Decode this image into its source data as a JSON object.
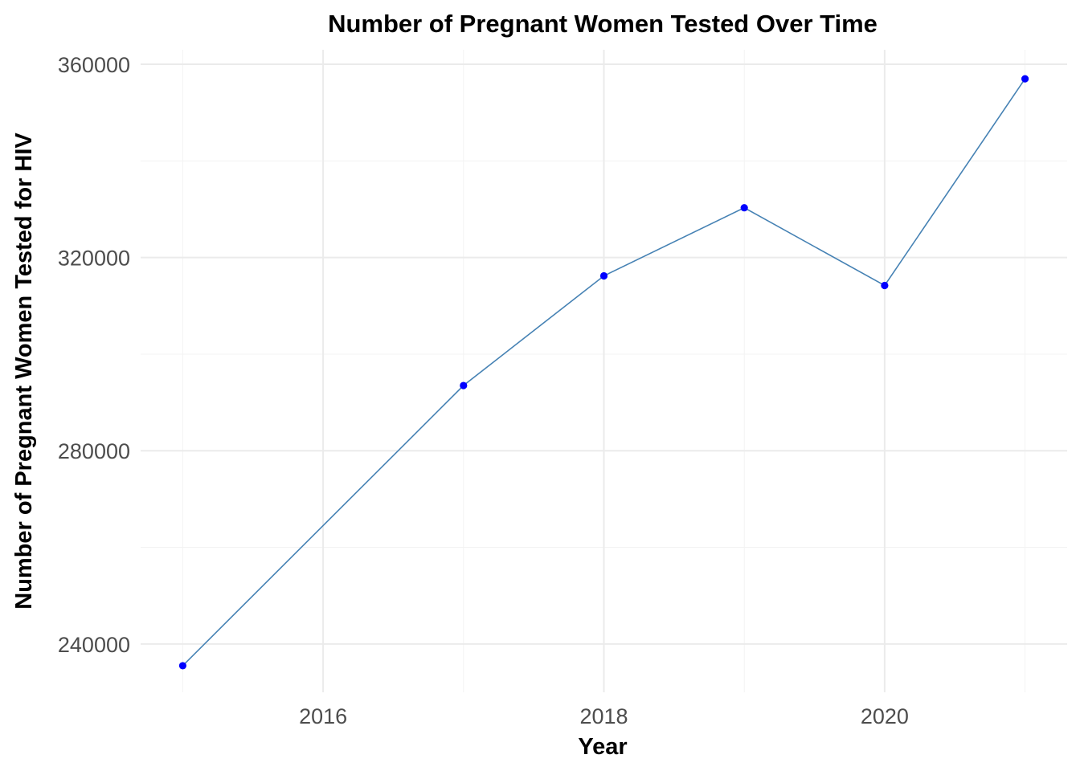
{
  "chart_data": {
    "type": "line",
    "title": "Number of Pregnant Women Tested Over Time",
    "xlabel": "Year",
    "ylabel": "Number of Pregnant Women Tested for HIV",
    "x": [
      2015,
      2017,
      2018,
      2019,
      2020,
      2021
    ],
    "series": [
      {
        "values": [
          235500,
          293500,
          316200,
          330300,
          314200,
          357000
        ]
      }
    ],
    "xlim": [
      2014.7,
      2021.3
    ],
    "ylim": [
      230000,
      363000
    ],
    "x_ticks": [
      2016,
      2018,
      2020
    ],
    "x_tick_labels": [
      "2016",
      "2018",
      "2020"
    ],
    "y_ticks": [
      240000,
      280000,
      320000,
      360000
    ],
    "y_tick_labels": [
      "240000",
      "280000",
      "320000",
      "360000"
    ],
    "grid": true,
    "legend": "none",
    "line_color": "#4682b4",
    "point_color": "#0000ff"
  }
}
